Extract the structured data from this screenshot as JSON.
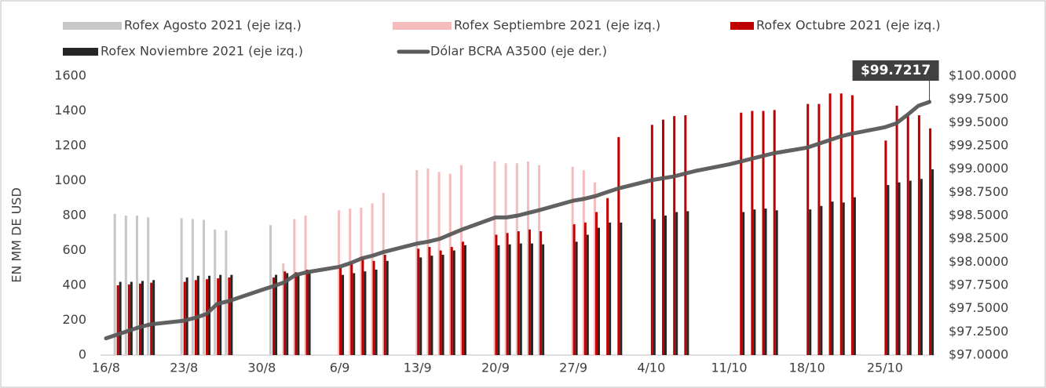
{
  "chart_data": {
    "type": "bar_line",
    "ylabel": "EN MM DE USD",
    "categories": [
      "16/8",
      null,
      null,
      null,
      null,
      "23/8",
      null,
      null,
      null,
      null,
      "30/8",
      null,
      null,
      null,
      null,
      "6/9",
      null,
      null,
      null,
      null,
      "13/9",
      null,
      null,
      null,
      null,
      "20/9",
      null,
      null,
      null,
      null,
      "27/9",
      null,
      null,
      null,
      null,
      "4/10",
      null,
      null,
      null,
      null,
      "11/10",
      null,
      null,
      null,
      null,
      "18/10",
      null,
      null,
      null,
      null,
      "25/10",
      null,
      null,
      null,
      null
    ],
    "series": [
      {
        "name": "Rofex Agosto 2021 (eje izq.)",
        "color": "#c8c8c8",
        "values": [
          null,
          810,
          800,
          800,
          790,
          785,
          780,
          775,
          720,
          715,
          null,
          745,
          null,
          null,
          null,
          null,
          null,
          null,
          null,
          null,
          null,
          null,
          null,
          null,
          null,
          null,
          null,
          null,
          null,
          null,
          null,
          null,
          null,
          null,
          null,
          null,
          null,
          null,
          null,
          null,
          null,
          null,
          null,
          null,
          null,
          null,
          null,
          null,
          null,
          null,
          null,
          null,
          null,
          null,
          null
        ]
      },
      {
        "name": "Rofex Septiembre 2021 (eje izq.)",
        "color": "#f4bcbc",
        "values": [
          null,
          null,
          null,
          null,
          null,
          null,
          null,
          null,
          null,
          null,
          null,
          null,
          525,
          780,
          800,
          830,
          840,
          845,
          870,
          930,
          1060,
          1070,
          1050,
          1040,
          1090,
          1110,
          1100,
          1100,
          1110,
          1090,
          1080,
          1060,
          990,
          null,
          null,
          null,
          null,
          null,
          null,
          null,
          null,
          null,
          null,
          null,
          null,
          null,
          null,
          null,
          null,
          null,
          null,
          null,
          null,
          null,
          null
        ]
      },
      {
        "name": "Rofex Octubre 2021 (eje izq.)",
        "color": "#c00000",
        "values": [
          null,
          400,
          405,
          410,
          415,
          420,
          430,
          435,
          440,
          445,
          null,
          445,
          480,
          475,
          490,
          500,
          530,
          560,
          540,
          575,
          610,
          620,
          600,
          620,
          650,
          690,
          700,
          710,
          720,
          710,
          750,
          760,
          820,
          900,
          1250,
          1320,
          1350,
          1370,
          1375,
          null,
          null,
          1390,
          1400,
          1400,
          1405,
          1440,
          1440,
          1500,
          1500,
          1490,
          1230,
          1430,
          1380,
          1375,
          1300
        ]
      },
      {
        "name": "Rofex Noviembre 2021 (eje izq.)",
        "color": "#262626",
        "values": [
          null,
          420,
          420,
          425,
          430,
          445,
          455,
          455,
          460,
          460,
          null,
          460,
          470,
          470,
          480,
          460,
          470,
          480,
          490,
          540,
          560,
          570,
          575,
          600,
          630,
          630,
          635,
          640,
          640,
          635,
          650,
          690,
          730,
          760,
          760,
          780,
          800,
          820,
          825,
          null,
          null,
          820,
          835,
          840,
          830,
          835,
          855,
          880,
          875,
          905,
          975,
          990,
          1000,
          1010,
          1065
        ]
      },
      {
        "name": "Dólar BCRA A3500 (eje der.)",
        "color": "#595959",
        "axis": "y2",
        "values": [
          97.18,
          97.22,
          97.26,
          97.3,
          97.33,
          97.37,
          97.4,
          97.44,
          97.55,
          97.58,
          97.7,
          97.74,
          97.78,
          97.86,
          97.89,
          97.95,
          97.99,
          98.04,
          98.07,
          98.11,
          98.2,
          98.22,
          98.25,
          98.3,
          98.35,
          98.48,
          98.48,
          98.5,
          98.53,
          98.56,
          98.66,
          98.68,
          98.71,
          98.75,
          98.79,
          98.88,
          98.9,
          98.92,
          98.95,
          98.98,
          99.05,
          99.08,
          99.11,
          99.14,
          99.17,
          99.23,
          99.27,
          99.31,
          99.35,
          99.38,
          99.45,
          99.49,
          99.58,
          99.68,
          99.7217
        ],
        "value_labels": [
          null,
          null,
          null,
          null,
          null,
          null,
          null,
          null,
          null,
          null,
          null,
          null,
          null,
          null,
          null,
          null,
          null,
          null,
          null,
          null,
          null,
          null,
          null,
          null,
          null,
          null,
          null,
          null,
          null,
          null,
          null,
          null,
          null,
          null,
          null,
          null,
          null,
          null,
          null,
          null,
          null,
          null,
          null,
          null,
          null,
          null,
          null,
          null,
          null,
          null,
          null,
          null,
          null,
          null,
          "$99.7217"
        ]
      }
    ],
    "ylim": [
      0,
      1600
    ],
    "yticks": [
      0,
      200,
      400,
      600,
      800,
      1000,
      1200,
      1400,
      1600
    ],
    "y2lim": [
      97,
      100
    ],
    "y2ticks": [
      {
        "value": 97,
        "label": "$97.0000"
      },
      {
        "value": 97.25,
        "label": "$97.2500"
      },
      {
        "value": 97.5,
        "label": "$97.5000"
      },
      {
        "value": 97.75,
        "label": "$97.7500"
      },
      {
        "value": 98,
        "label": "$98.0000"
      },
      {
        "value": 98.25,
        "label": "$98.2500"
      },
      {
        "value": 98.5,
        "label": "$98.5000"
      },
      {
        "value": 98.75,
        "label": "$98.7500"
      },
      {
        "value": 99,
        "label": "$99.0000"
      },
      {
        "value": 99.25,
        "label": "$99.2500"
      },
      {
        "value": 99.5,
        "label": "$99.5000"
      },
      {
        "value": 99.75,
        "label": "$99.7500"
      },
      {
        "value": 100,
        "label": "$100.0000"
      }
    ],
    "grid": false
  }
}
